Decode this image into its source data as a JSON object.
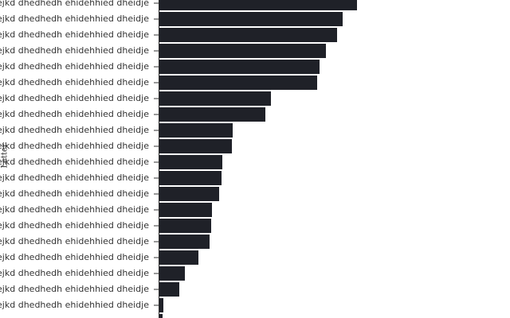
{
  "chart_data": {
    "type": "bar",
    "orientation": "horizontal",
    "y_label": "Letter",
    "categories": [
      "k djdejkd dhedhedh ehidehhied dheidje",
      "k djdejkd dhedhedh ehidehhied dheidje",
      "k djdejkd dhedhedh ehidehhied dheidje",
      "k djdejkd dhedhedh ehidehhied dheidje",
      "k djdejkd dhedhedh ehidehhied dheidje",
      "k djdejkd dhedhedh ehidehhied dheidje",
      "k djdejkd dhedhedh ehidehhied dheidje",
      "k djdejkd dhedhedh ehidehhied dheidje",
      "k djdejkd dhedhedh ehidehhied dheidje",
      "k djdejkd dhedhedh ehidehhied dheidje",
      "k djdejkd dhedhedh ehidehhied dheidje",
      "k djdejkd dhedhedh ehidehhied dheidje",
      "k djdejkd dhedhedh ehidehhied dheidje",
      "k djdejkd dhedhedh ehidehhied dheidje",
      "k djdejkd dhedhedh ehidehhied dheidje",
      "k djdejkd dhedhedh ehidehhied dheidje",
      "k djdejkd dhedhedh ehidehhied dheidje",
      "k djdejkd dhedhedh ehidehhied dheidje",
      "k djdejkd dhedhedh ehidehhied dheidje",
      "k djdejkd dhedhedh ehidehhied dheidje",
      null
    ],
    "values": [
      248,
      230,
      223,
      209,
      201,
      198,
      140,
      133,
      92,
      91,
      79,
      78,
      75,
      66,
      65,
      63,
      49,
      32,
      25,
      5,
      4
    ],
    "color": "#1f2128"
  }
}
